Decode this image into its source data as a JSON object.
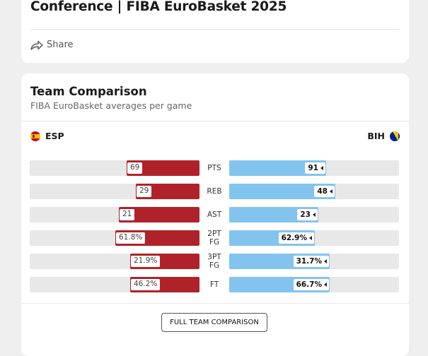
{
  "header": {
    "headline": "Conference | FIBA EuroBasket 2025",
    "share_label": "Share",
    "share_icon": "share-arrow-icon"
  },
  "comparison": {
    "title": "Team Comparison",
    "subtitle": "FIBA EuroBasket averages per game",
    "team_left": {
      "code": "ESP",
      "flag_icon": "spain-flag-icon",
      "color": "#b0222a"
    },
    "team_right": {
      "code": "BIH",
      "flag_icon": "bosnia-flag-icon",
      "color": "#83c4ee"
    },
    "stats": [
      {
        "label": "PTS",
        "left": "69",
        "right": "91",
        "left_share": 0.431,
        "right_share": 0.569
      },
      {
        "label": "REB",
        "left": "29",
        "right": "48",
        "left_share": 0.377,
        "right_share": 0.623
      },
      {
        "label": "AST",
        "left": "21",
        "right": "23",
        "left_share": 0.477,
        "right_share": 0.523
      },
      {
        "label": "2PT FG",
        "left": "61.8%",
        "right": "62.9%",
        "left_share": 0.496,
        "right_share": 0.504
      },
      {
        "label": "3PT FG",
        "left": "21.9%",
        "right": "31.7%",
        "left_share": 0.409,
        "right_share": 0.591
      },
      {
        "label": "FT",
        "left": "46.2%",
        "right": "66.7%",
        "left_share": 0.409,
        "right_share": 0.591
      }
    ],
    "button_label": "FULL TEAM COMPARISON"
  }
}
